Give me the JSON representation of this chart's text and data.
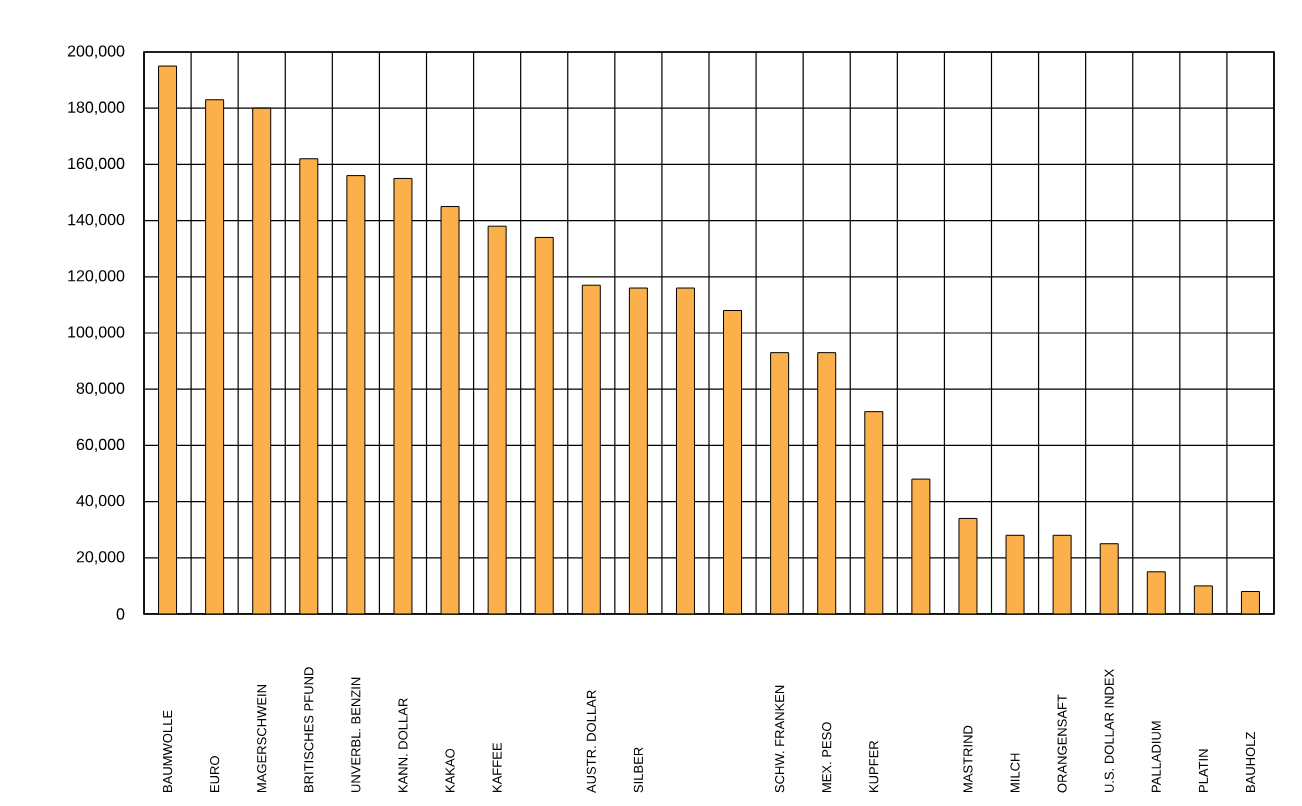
{
  "chart_data": {
    "type": "bar",
    "categories": [
      "BAUMWOLLE",
      "EURO",
      "MAGERSCHWEIN",
      "BRITISCHES PFUND",
      "UNVERBL. BENZIN",
      "KANN. DOLLAR",
      "KAKAO",
      "KAFFEE",
      null,
      "AUSTR. DOLLAR",
      "SILBER",
      null,
      null,
      "SCHW. FRANKEN",
      "MEX. PESO",
      "KUPFER",
      null,
      "MASTRIND",
      "MILCH",
      "ORANGENSAFT",
      "U.S. DOLLAR INDEX",
      "PALLADIUM",
      "PLATIN",
      "BAUHOLZ"
    ],
    "values": [
      195000,
      183000,
      180000,
      162000,
      156000,
      155000,
      145000,
      138000,
      134000,
      117000,
      116000,
      116000,
      108000,
      93000,
      93000,
      72000,
      48000,
      34000,
      28000,
      28000,
      25000,
      15000,
      10000,
      8000
    ],
    "color": "#fbb04c",
    "ylim": [
      0,
      200000
    ],
    "yticks": [
      0,
      {
        "value": 20000,
        "label": "20,000"
      },
      {
        "value": 40000,
        "label": "40,000"
      },
      {
        "value": 60000,
        "label": "60,000"
      },
      {
        "value": 80000,
        "label": "80,000"
      },
      {
        "value": 100000,
        "label": "100,000"
      },
      {
        "value": 120000,
        "label": "120,000"
      },
      {
        "value": 140000,
        "label": "140,000"
      },
      {
        "value": 160000,
        "label": "160,000"
      },
      {
        "value": 180000,
        "label": "180,000"
      },
      {
        "value": 200000,
        "label": "200,000"
      }
    ],
    "grid": true
  }
}
